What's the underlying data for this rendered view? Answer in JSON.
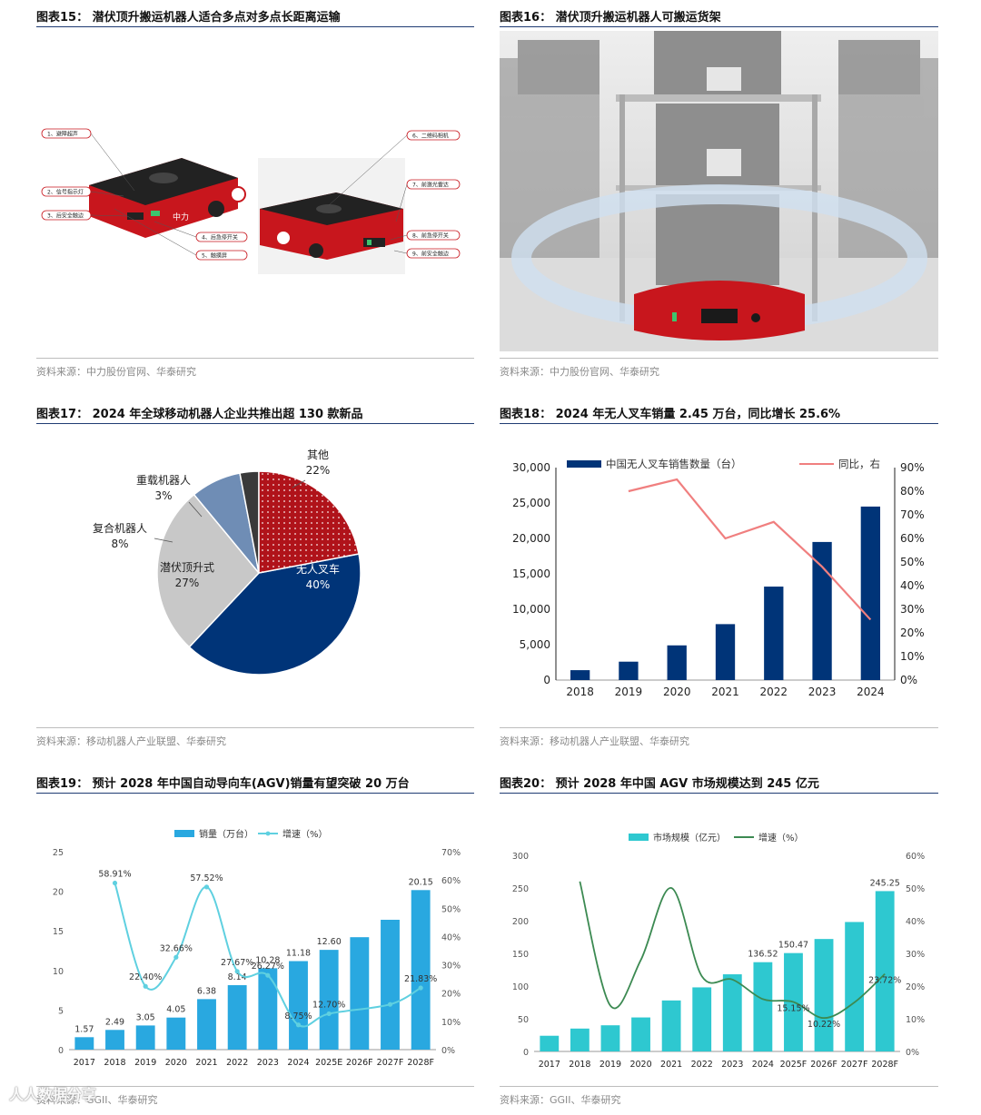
{
  "p15": {
    "title": "图表15：  潜伏顶升搬运机器人适合多点对多点长距离运输",
    "source": "资料来源：中力股份官网、华泰研究",
    "brand": "中力",
    "callouts": [
      "1、避障超声",
      "2、信号指示灯",
      "3、后安全触边",
      "4、后急停开关",
      "5、触摸屏",
      "6、二维码相机",
      "7、前激光雷达",
      "8、前急停开关",
      "9、前安全触边"
    ]
  },
  "p16": {
    "title": "图表16：  潜伏顶升搬运机器人可搬运货架",
    "source": "资料来源：中力股份官网、华泰研究"
  },
  "p17": {
    "title": "图表17：  2024 年全球移动机器人企业共推出超 130 款新品",
    "source": "资料来源：移动机器人产业联盟、华泰研究"
  },
  "p18": {
    "title": "图表18：  2024 年无人叉车销量 2.45 万台，同比增长 25.6%",
    "source": "资料来源：移动机器人产业联盟、华泰研究"
  },
  "p19": {
    "title": "图表19：  预计 2028 年中国自动导向车(AGV)销量有望突破 20 万台",
    "source": "资料来源：GGII、华泰研究"
  },
  "p20": {
    "title": "图表20：  预计 2028 年中国 AGV 市场规模达到 245 亿元",
    "source": "资料来源：GGII、华泰研究"
  },
  "watermark": "人人数据分享",
  "chart_data": [
    {
      "id": "fig17",
      "type": "pie",
      "slices": [
        {
          "label": "无人叉车",
          "pct": "40%",
          "value": 40,
          "color": "#003478"
        },
        {
          "label": "潜伏顶升式",
          "pct": "27%",
          "value": 27,
          "color": "#c8c8c8"
        },
        {
          "label": "复合机器人",
          "pct": "8%",
          "value": 8,
          "color": "#6f8db5"
        },
        {
          "label": "重载机器人",
          "pct": "3%",
          "value": 3,
          "color": "#3a3a3a"
        },
        {
          "label": "其他",
          "pct": "22%",
          "value": 22,
          "color": "#b0131a"
        }
      ]
    },
    {
      "id": "fig18",
      "type": "bar",
      "categories": [
        "2018",
        "2019",
        "2020",
        "2021",
        "2022",
        "2023",
        "2024"
      ],
      "series": [
        {
          "name": "中国无人叉车销售数量（台）",
          "values": [
            1400,
            2600,
            4900,
            7900,
            13200,
            19500,
            24500
          ],
          "color": "#003478"
        },
        {
          "name": "同比，右",
          "values": [
            null,
            80,
            85,
            60,
            67,
            48,
            25.6
          ],
          "color": "#f07f7f"
        }
      ],
      "ylim": [
        0,
        30000
      ],
      "y_ticks": [
        "0",
        "5,000",
        "10,000",
        "15,000",
        "20,000",
        "25,000",
        "30,000"
      ],
      "y2lim": [
        0,
        90
      ],
      "y2_ticks": [
        "0%",
        "10%",
        "20%",
        "30%",
        "40%",
        "50%",
        "60%",
        "70%",
        "80%",
        "90%"
      ]
    },
    {
      "id": "fig19",
      "type": "bar",
      "categories": [
        "2017",
        "2018",
        "2019",
        "2020",
        "2021",
        "2022",
        "2023",
        "2024",
        "2025E",
        "2026F",
        "2027F",
        "2028F"
      ],
      "series": [
        {
          "name": "销量（万台）",
          "values": [
            1.57,
            2.49,
            3.05,
            4.05,
            6.38,
            8.14,
            10.28,
            11.18,
            12.6,
            14.2,
            16.4,
            20.15
          ],
          "labels": [
            "1.57",
            "2.49",
            "3.05",
            "4.05",
            "6.38",
            "8.14",
            "10.28",
            "11.18",
            "12.60",
            "",
            "",
            "20.15"
          ],
          "color": "#29a8e0"
        },
        {
          "name": "增速（%）",
          "values": [
            null,
            58.91,
            22.4,
            32.66,
            57.52,
            27.67,
            26.27,
            8.75,
            12.7,
            null,
            16,
            21.83
          ],
          "labels": [
            "",
            "58.91%",
            "22.40%",
            "32.66%",
            "57.52%",
            "27.67%",
            "26.27%",
            "8.75%",
            "12.70%",
            "",
            "",
            "21.83%"
          ],
          "color": "#5fd0e0"
        }
      ],
      "ylim": [
        0,
        25
      ],
      "y_ticks": [
        "0",
        "5",
        "10",
        "15",
        "20",
        "25"
      ],
      "y2lim": [
        0,
        70
      ],
      "y2_ticks": [
        "0%",
        "10%",
        "20%",
        "30%",
        "40%",
        "50%",
        "60%",
        "70%"
      ]
    },
    {
      "id": "fig20",
      "type": "bar",
      "categories": [
        "2017",
        "2018",
        "2019",
        "2020",
        "2021",
        "2022",
        "2023",
        "2024",
        "2025F",
        "2026F",
        "2027F",
        "2028F"
      ],
      "series": [
        {
          "name": "市场规模（亿元）",
          "values": [
            24,
            35,
            40,
            52,
            78,
            98,
            118,
            136.52,
            150.47,
            172,
            198,
            245.25
          ],
          "labels": [
            "",
            "",
            "",
            "",
            "",
            "",
            "",
            "136.52",
            "150.47",
            "",
            "",
            "245.25"
          ],
          "color": "#2ec8d0"
        },
        {
          "name": "增速（%）",
          "values": [
            null,
            52,
            14,
            28,
            50,
            23,
            22,
            16,
            15.15,
            10.22,
            15,
            23.72
          ],
          "labels": [
            "",
            "",
            "",
            "",
            "",
            "",
            "",
            "",
            "15.15%",
            "10.22%",
            "",
            "23.72%"
          ],
          "color": "#3c8a52"
        }
      ],
      "ylim": [
        0,
        300
      ],
      "y_ticks": [
        "0",
        "50",
        "100",
        "150",
        "200",
        "250",
        "300"
      ],
      "y2lim": [
        0,
        60
      ],
      "y2_ticks": [
        "0%",
        "10%",
        "20%",
        "30%",
        "40%",
        "50%",
        "60%"
      ]
    }
  ]
}
